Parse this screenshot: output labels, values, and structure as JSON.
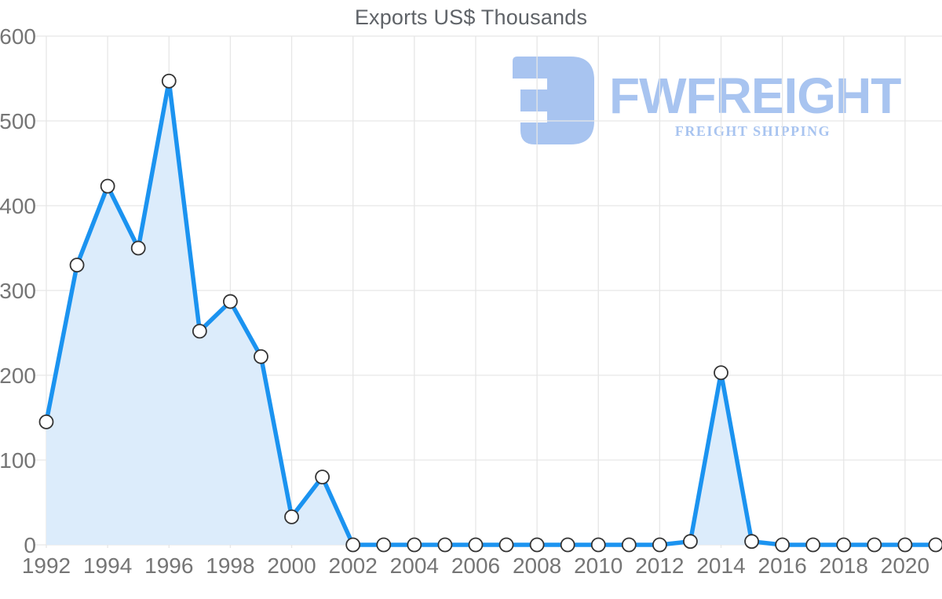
{
  "chart_data": {
    "type": "area",
    "title": "Exports US$ Thousands",
    "x": [
      1992,
      1993,
      1994,
      1995,
      1996,
      1997,
      1998,
      1999,
      2000,
      2001,
      2002,
      2003,
      2004,
      2005,
      2006,
      2007,
      2008,
      2009,
      2010,
      2011,
      2012,
      2013,
      2014,
      2015,
      2016,
      2017,
      2018,
      2019,
      2020,
      2021
    ],
    "series": [
      {
        "name": "Exports US$ Thousands",
        "values": [
          145,
          330,
          423,
          350,
          547,
          252,
          287,
          222,
          33,
          80,
          0,
          0,
          0,
          0,
          0,
          0,
          0,
          0,
          0,
          0,
          0,
          4,
          203,
          4,
          0,
          0,
          0,
          0,
          0,
          0
        ]
      }
    ],
    "xlabel": "",
    "ylabel": "",
    "ylim": [
      0,
      600
    ],
    "y_ticks": [
      0,
      100,
      200,
      300,
      400,
      500,
      600
    ],
    "x_tick_labels": [
      "1992",
      "1994",
      "1996",
      "1998",
      "2000",
      "2002",
      "2004",
      "2006",
      "2008",
      "2010",
      "2012",
      "2014",
      "2016",
      "2018",
      "2020"
    ],
    "grid": "on",
    "legend": "none",
    "marker": "circle"
  },
  "watermark": {
    "brand": "FWFREIGHT",
    "tagline": "FREIGHT SHIPPING",
    "icon": "fwfreight-logo-icon"
  },
  "colors": {
    "line": "#1b93f0",
    "area_fill": "#dcecfb",
    "marker_fill": "#ffffff",
    "marker_stroke": "#333333",
    "grid": "#e6e6e6",
    "axis_label": "#757575",
    "title": "#5f6368",
    "logo": "#a8c4f0"
  }
}
